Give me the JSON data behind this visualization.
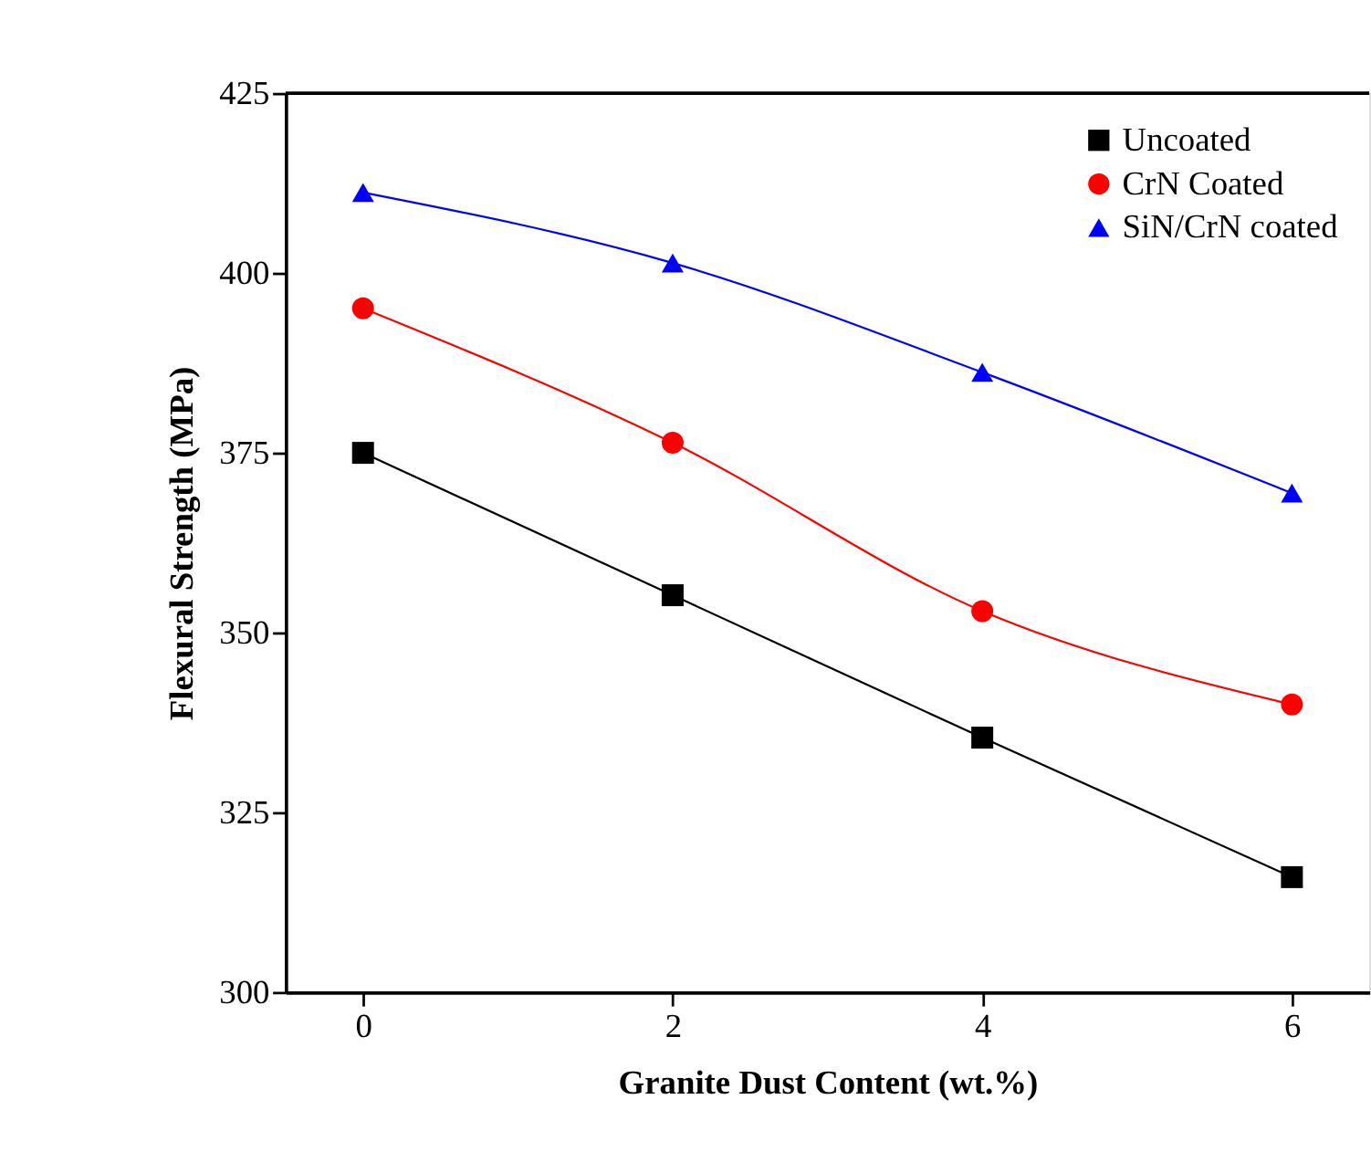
{
  "chart_data": {
    "type": "line",
    "xlabel": "Granite Dust Content (wt.%)",
    "ylabel": "Flexural Strength (MPa)",
    "x": [
      0,
      2,
      4,
      6
    ],
    "series": [
      {
        "name": "Uncoated",
        "color": "#000000",
        "marker": "square",
        "values": [
          375,
          355.2,
          335.4,
          316
        ]
      },
      {
        "name": "CrN Coated",
        "color": "#ff0000",
        "marker": "circle",
        "values": [
          395.1,
          376.4,
          353,
          340
        ]
      },
      {
        "name": "SiN/CrN coated",
        "color": "#0000ff",
        "marker": "triangle",
        "values": [
          411.2,
          401.4,
          386.2,
          369.4
        ]
      }
    ],
    "xlim": [
      -0.5,
      6.5
    ],
    "xticks": [
      0,
      2,
      4,
      6
    ],
    "ylim": [
      300,
      425
    ],
    "yticks": [
      300,
      325,
      350,
      375,
      400,
      425
    ],
    "grid": false,
    "legend": "top right",
    "line_style": "solid"
  }
}
